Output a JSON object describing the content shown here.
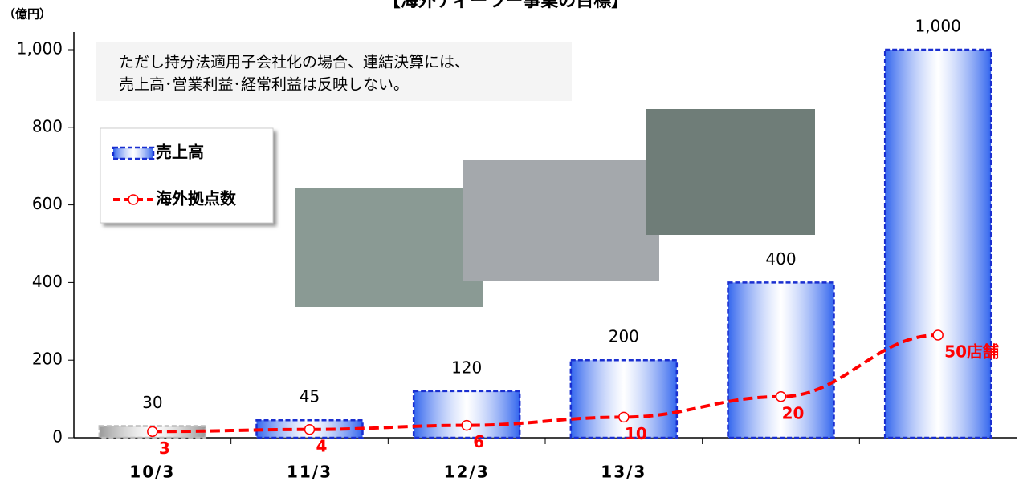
{
  "chart_data": {
    "type": "bar-line",
    "title": "【海外ディーラー事業の目標】",
    "y_label": "（億円）",
    "annotation": [
      "ただし持分法適用子会社化の場合、連結決算には、",
      "売上高･営業利益･経常利益は反映しない。"
    ],
    "categories": [
      "10/3",
      "11/3",
      "12/3",
      "13/3",
      null,
      null
    ],
    "series": [
      {
        "name": "売上高",
        "type": "bar",
        "color": "#3366ee",
        "border": "#1a2fd0",
        "colors": [
          "#999999",
          "#3366ee",
          "#3366ee",
          "#3366ee",
          "#3366ee",
          "#3366ee"
        ],
        "values": [
          30,
          45,
          120,
          200,
          400,
          1000
        ],
        "value_labels": [
          "30",
          "45",
          "120",
          "200",
          "400",
          "1,000"
        ]
      },
      {
        "name": "海外拠点数",
        "type": "line",
        "axis": "y2",
        "color": "#ff0000",
        "values": [
          3,
          4,
          6,
          10,
          20,
          50
        ],
        "value_labels": [
          "3",
          "4",
          "6",
          "10",
          "20",
          "50店舗"
        ]
      }
    ],
    "ylim": [
      0,
      1000
    ],
    "yticks": [
      0,
      200,
      400,
      600,
      800,
      {
        "value": 1000,
        "label": "1,000"
      }
    ],
    "y2lim": [
      0,
      189
    ],
    "grid": false,
    "legend": "upper left"
  }
}
